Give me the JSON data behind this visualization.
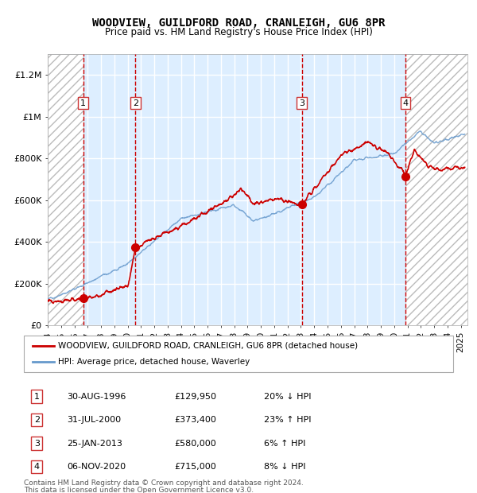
{
  "title": "WOODVIEW, GUILDFORD ROAD, CRANLEIGH, GU6 8PR",
  "subtitle": "Price paid vs. HM Land Registry's House Price Index (HPI)",
  "legend_line1": "WOODVIEW, GUILDFORD ROAD, CRANLEIGH, GU6 8PR (detached house)",
  "legend_line2": "HPI: Average price, detached house, Waverley",
  "footnote1": "Contains HM Land Registry data © Crown copyright and database right 2024.",
  "footnote2": "This data is licensed under the Open Government Licence v3.0.",
  "sales": [
    {
      "num": 1,
      "date": "30-AUG-1996",
      "price": 129950,
      "year": 1996.66,
      "pct": "20%",
      "dir": "↓"
    },
    {
      "num": 2,
      "date": "31-JUL-2000",
      "price": 373400,
      "year": 2000.58,
      "pct": "23%",
      "dir": "↑"
    },
    {
      "num": 3,
      "date": "25-JAN-2013",
      "price": 580000,
      "year": 2013.07,
      "pct": "6%",
      "dir": "↑"
    },
    {
      "num": 4,
      "date": "06-NOV-2020",
      "price": 715000,
      "year": 2020.85,
      "pct": "8%",
      "dir": "↓"
    }
  ],
  "ylim": [
    0,
    1300000
  ],
  "xlim_start": 1994.0,
  "xlim_end": 2025.5,
  "yticks": [
    0,
    200000,
    400000,
    600000,
    800000,
    1000000,
    1200000
  ],
  "ytick_labels": [
    "£0",
    "£200K",
    "£400K",
    "£600K",
    "£800K",
    "£1M",
    "£1.2M"
  ],
  "red_color": "#cc0000",
  "blue_color": "#6699cc",
  "hatch_color": "#cccccc",
  "bg_color": "#ddeeff",
  "grid_color": "#ffffff",
  "vline_color": "#cc0000"
}
